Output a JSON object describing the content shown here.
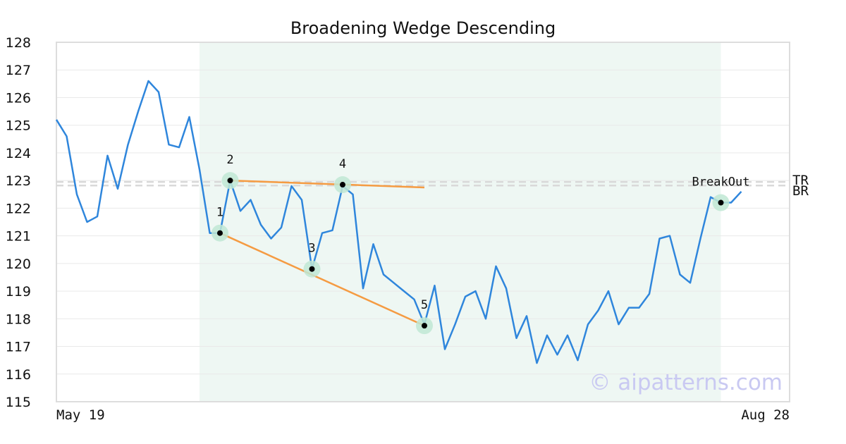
{
  "chart_data": {
    "type": "line",
    "title": "Broadening Wedge Descending",
    "xlabel": "",
    "ylabel": "",
    "ylim": [
      115,
      128
    ],
    "yticks": [
      115,
      116,
      117,
      118,
      119,
      120,
      121,
      122,
      123,
      124,
      125,
      126,
      127,
      128
    ],
    "x_tick_labels": [
      {
        "label": "May 19",
        "index": 0
      },
      {
        "label": "Aug 28",
        "index": 70
      }
    ],
    "grid": true,
    "series": [
      {
        "color": "#2f86dc",
        "values": [
          125.2,
          124.6,
          122.5,
          121.5,
          121.7,
          123.9,
          122.7,
          124.3,
          125.5,
          126.6,
          126.2,
          124.3,
          124.2,
          125.3,
          123.4,
          121.1,
          121.1,
          123.0,
          121.9,
          122.3,
          121.4,
          120.9,
          121.3,
          122.8,
          122.3,
          119.8,
          121.1,
          121.2,
          122.8,
          122.5,
          119.1,
          120.7,
          119.6,
          119.3,
          119.0,
          118.7,
          117.8,
          119.2,
          116.9,
          117.8,
          118.8,
          119.0,
          118.0,
          119.9,
          119.1,
          117.3,
          118.1,
          116.4,
          117.4,
          116.7,
          117.4,
          116.5,
          117.8,
          118.3,
          119.0,
          117.8,
          118.4,
          118.4,
          118.9,
          120.9,
          121.0,
          119.6,
          119.3,
          120.9,
          122.4,
          122.2,
          122.2,
          122.6
        ]
      }
    ],
    "shaded_region": {
      "start_index": 14,
      "end_index": 65,
      "color": "#eef7f3"
    },
    "pattern_points": [
      {
        "label": "1",
        "index": 16,
        "value": 121.1
      },
      {
        "label": "2",
        "index": 17,
        "value": 123.0
      },
      {
        "label": "3",
        "index": 25,
        "value": 119.8
      },
      {
        "label": "4",
        "index": 28,
        "value": 122.85
      },
      {
        "label": "5",
        "index": 36,
        "value": 117.75
      }
    ],
    "trend_lines": [
      {
        "from_index": 16,
        "from_value": 121.1,
        "to_index": 36,
        "to_value": 117.75,
        "color": "#f59b42"
      },
      {
        "from_index": 17,
        "from_value": 123.0,
        "to_index": 36,
        "to_value": 122.75,
        "color": "#f59b42"
      }
    ],
    "reference_lines": [
      {
        "label": "TR",
        "value": 122.95
      },
      {
        "label": "BR",
        "value": 122.82
      }
    ],
    "breakout": {
      "label": "BreakOut",
      "index": 65,
      "value": 122.2
    },
    "watermark": "© aipatterns.com",
    "axis_color": "#dddddd",
    "highlight_color": "#bfe8d3"
  }
}
